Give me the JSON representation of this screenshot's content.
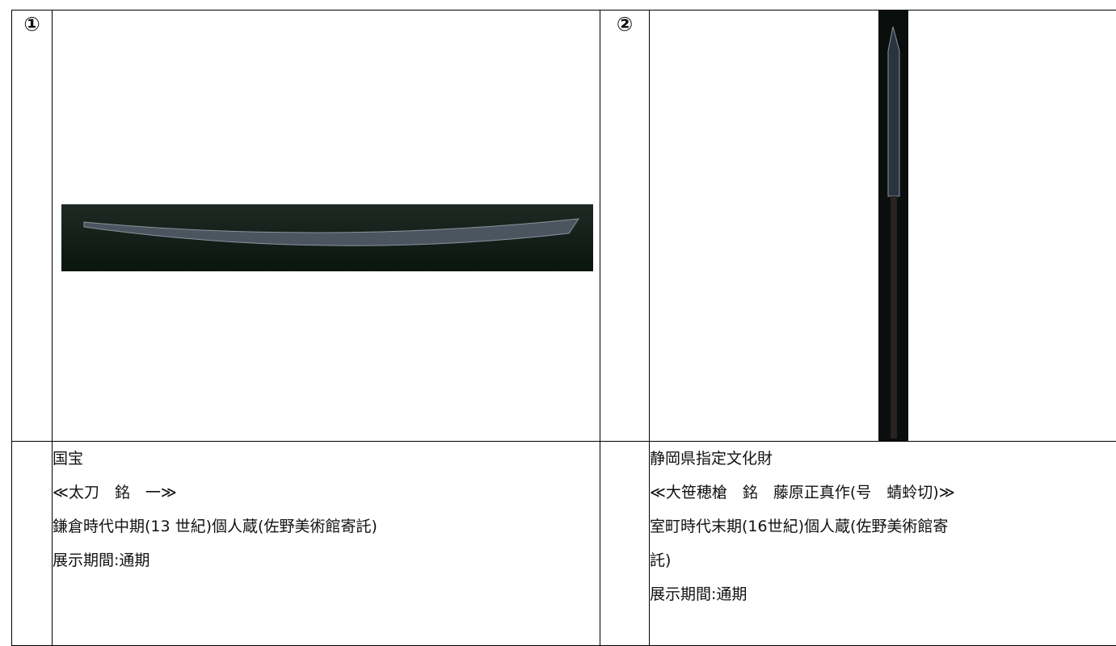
{
  "table": {
    "items": [
      {
        "number": "①",
        "lines": [
          "国宝",
          "≪太刀　銘　一≫",
          "鎌倉時代中期(13 世紀)個人蔵(佐野美術館寄託)",
          "展示期間:通期"
        ]
      },
      {
        "number": "②",
        "lines": [
          "静岡県指定文化財",
          "≪大笹穂槍　銘　藤原正真作(号　蜻蛉切)≫",
          "室町時代末期(16世紀)個人蔵(佐野美術館寄",
          "託)",
          "展示期間:通期"
        ]
      }
    ]
  }
}
